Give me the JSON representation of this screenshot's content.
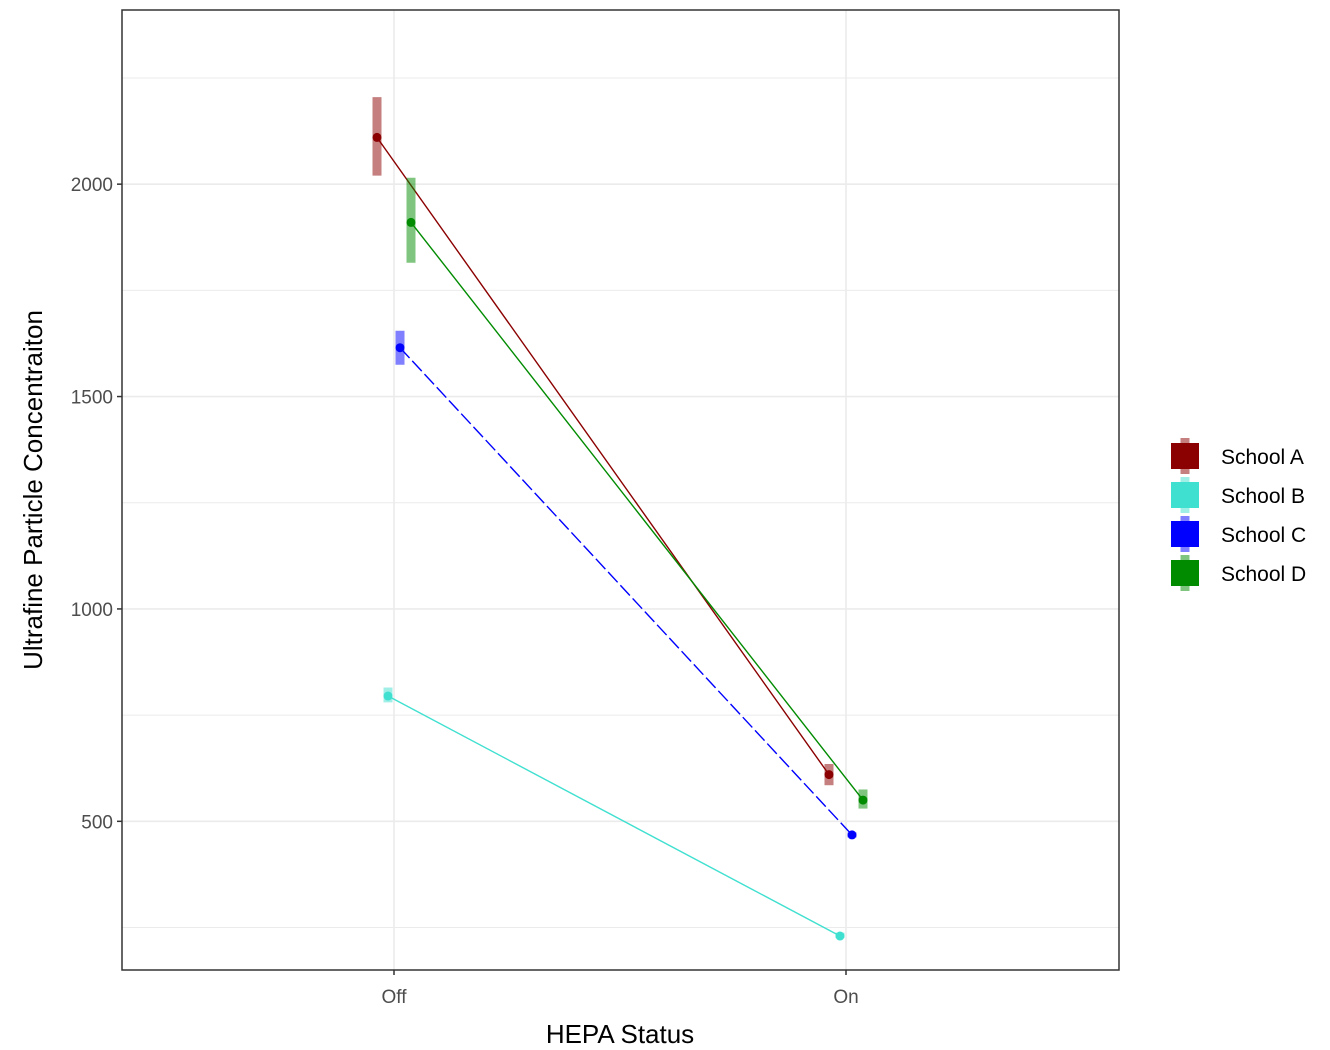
{
  "chart_data": {
    "type": "line",
    "title": "",
    "xlabel": "HEPA Status",
    "ylabel": "Ultrafine Particle Concentraiton",
    "categories": [
      "Off",
      "On"
    ],
    "y_ticks": [
      500,
      1000,
      1500,
      2000
    ],
    "y_tick_labels": [
      "500",
      "1000",
      "1500",
      "2000"
    ],
    "ylim": [
      150,
      2410
    ],
    "grid": true,
    "legend_position": "right",
    "series": [
      {
        "name": "School A",
        "color": "#8B0000",
        "dash": "solid",
        "values": [
          2110,
          610
        ],
        "error_low": [
          2020,
          585
        ],
        "error_high": [
          2205,
          635
        ]
      },
      {
        "name": "School B",
        "color": "#40E0D0",
        "dash": "solid",
        "values": [
          795,
          230
        ],
        "error_low": [
          780,
          225
        ],
        "error_high": [
          815,
          238
        ]
      },
      {
        "name": "School C",
        "color": "#0000FF",
        "dash": "dashed",
        "values": [
          1615,
          468
        ],
        "error_low": [
          1575,
          462
        ],
        "error_high": [
          1655,
          474
        ]
      },
      {
        "name": "School D",
        "color": "#008B00",
        "dash": "solid",
        "values": [
          1910,
          550
        ],
        "error_low": [
          1815,
          530
        ],
        "error_high": [
          2015,
          575
        ]
      }
    ]
  }
}
